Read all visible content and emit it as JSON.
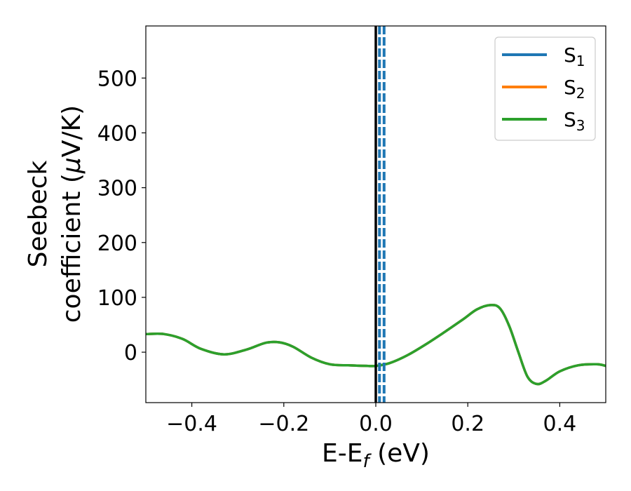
{
  "chart_data": {
    "type": "line",
    "xlabel": {
      "main": "E-E",
      "sub": "f",
      "rest": " (eV)"
    },
    "ylabel": {
      "line1": "Seebeck",
      "line2": "coefficient  (",
      "mu": "μ",
      "rest": "V/K)"
    },
    "xlim": [
      -0.5,
      0.5
    ],
    "ylim": [
      -92,
      595
    ],
    "xticks": [
      -0.4,
      -0.2,
      0.0,
      0.2,
      0.4
    ],
    "xtick_labels": [
      "−0.4",
      "−0.2",
      "0.0",
      "0.2",
      "0.4"
    ],
    "yticks": [
      0,
      100,
      200,
      300,
      400,
      500
    ],
    "ytick_labels": [
      "0",
      "100",
      "200",
      "300",
      "400",
      "500"
    ],
    "grid": false,
    "legend_position": "top-right",
    "vline_solid": {
      "x": 0.0,
      "color": "#000000"
    },
    "vlines_dashed": [
      {
        "x": 0.008,
        "color": "#1f77b4"
      },
      {
        "x": 0.018,
        "color": "#1f77b4"
      }
    ],
    "series": [
      {
        "name": "S",
        "sub": "1",
        "color": "#1f77b4",
        "x": [
          -0.5,
          -0.46,
          -0.42,
          -0.38,
          -0.33,
          -0.28,
          -0.24,
          -0.21,
          -0.18,
          -0.14,
          -0.1,
          -0.06,
          -0.02,
          0.0,
          0.03,
          0.07,
          0.11,
          0.15,
          0.19,
          0.22,
          0.25,
          0.27,
          0.29,
          0.31,
          0.33,
          0.35,
          0.37,
          0.4,
          0.44,
          0.48,
          0.5
        ],
        "y": [
          33,
          33,
          24,
          6,
          -4,
          5,
          17,
          18,
          10,
          -10,
          -22,
          -24,
          -25,
          -25,
          -20,
          -5,
          15,
          37,
          60,
          78,
          86,
          80,
          48,
          0,
          -45,
          -58,
          -52,
          -35,
          -24,
          -22,
          -25
        ]
      },
      {
        "name": "S",
        "sub": "2",
        "color": "#ff7f0e",
        "x": [
          -0.5,
          -0.46,
          -0.42,
          -0.38,
          -0.33,
          -0.28,
          -0.24,
          -0.21,
          -0.18,
          -0.14,
          -0.1,
          -0.06,
          -0.02,
          0.0,
          0.03,
          0.07,
          0.11,
          0.15,
          0.19,
          0.22,
          0.25,
          0.27,
          0.29,
          0.31,
          0.33,
          0.35,
          0.37,
          0.4,
          0.44,
          0.48,
          0.5
        ],
        "y": [
          33,
          33,
          24,
          6,
          -4,
          5,
          17,
          18,
          10,
          -10,
          -22,
          -24,
          -25,
          -25,
          -20,
          -5,
          15,
          37,
          60,
          78,
          86,
          80,
          48,
          0,
          -45,
          -58,
          -52,
          -35,
          -24,
          -22,
          -25
        ]
      },
      {
        "name": "S",
        "sub": "3",
        "color": "#2ca02c",
        "x": [
          -0.5,
          -0.46,
          -0.42,
          -0.38,
          -0.33,
          -0.28,
          -0.24,
          -0.21,
          -0.18,
          -0.14,
          -0.1,
          -0.06,
          -0.02,
          0.0,
          0.03,
          0.07,
          0.11,
          0.15,
          0.19,
          0.22,
          0.25,
          0.27,
          0.29,
          0.31,
          0.33,
          0.35,
          0.37,
          0.4,
          0.44,
          0.48,
          0.5
        ],
        "y": [
          33,
          33,
          24,
          6,
          -4,
          5,
          17,
          18,
          10,
          -10,
          -22,
          -24,
          -25,
          -25,
          -20,
          -5,
          15,
          37,
          60,
          78,
          86,
          80,
          48,
          0,
          -45,
          -58,
          -52,
          -35,
          -24,
          -22,
          -25
        ]
      }
    ]
  }
}
